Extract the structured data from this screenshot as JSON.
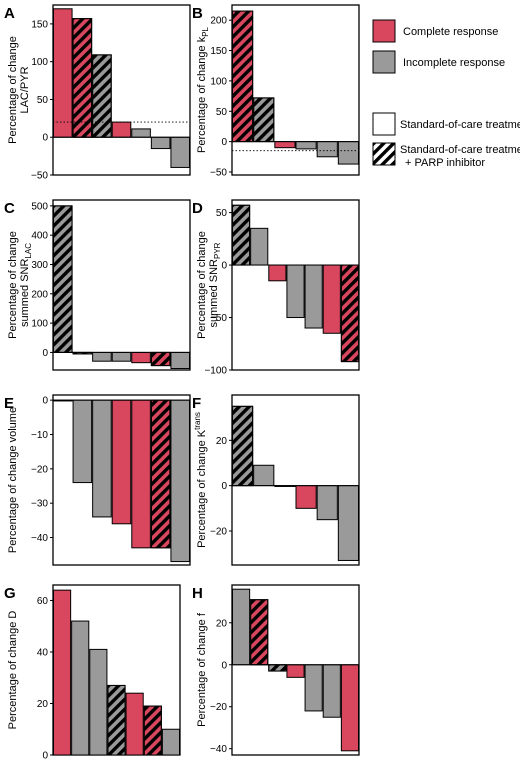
{
  "colors": {
    "complete": "#d9475f",
    "incomplete": "#9a9a9a",
    "stroke": "#000000"
  },
  "legend": {
    "complete_label": "Complete response",
    "incomplete_label": "Incomplete response",
    "soc_label": "Standard-of-care treatment",
    "parp_label_line1": "Standard-of-care treatment",
    "parp_label_line2": "+ PARP inhibitor"
  },
  "chart_data": [
    {
      "panel": "A",
      "type": "bar",
      "ylabel_lines": [
        "Percentage of change",
        "LAC/PYR"
      ],
      "ylim": [
        -50,
        175
      ],
      "ticks": [
        -50,
        0,
        50,
        100,
        150
      ],
      "reference_line": 20,
      "bars": [
        {
          "value": 170,
          "response": "complete",
          "parp": false
        },
        {
          "value": 157,
          "response": "complete",
          "parp": true
        },
        {
          "value": 109,
          "response": "incomplete",
          "parp": true
        },
        {
          "value": 20,
          "response": "complete",
          "parp": false
        },
        {
          "value": 11,
          "response": "incomplete",
          "parp": false
        },
        {
          "value": -15,
          "response": "incomplete",
          "parp": false
        },
        {
          "value": -40,
          "response": "incomplete",
          "parp": false
        }
      ]
    },
    {
      "panel": "B",
      "type": "bar",
      "ylabel_lines": [
        "Percentage of change k_PL"
      ],
      "ylim": [
        -55,
        225
      ],
      "ticks": [
        -50,
        0,
        50,
        100,
        150,
        200
      ],
      "reference_line": -15,
      "bars": [
        {
          "value": 215,
          "response": "complete",
          "parp": true
        },
        {
          "value": 72,
          "response": "incomplete",
          "parp": true
        },
        {
          "value": -10,
          "response": "complete",
          "parp": false
        },
        {
          "value": -12,
          "response": "incomplete",
          "parp": false
        },
        {
          "value": -25,
          "response": "incomplete",
          "parp": false
        },
        {
          "value": -37,
          "response": "incomplete",
          "parp": false
        }
      ]
    },
    {
      "panel": "C",
      "type": "bar",
      "ylabel_lines": [
        "Percentage of change",
        "summed SNR_LAC"
      ],
      "ylim": [
        -60,
        520
      ],
      "ticks": [
        0,
        100,
        200,
        300,
        400,
        500
      ],
      "reference_line": null,
      "bars": [
        {
          "value": 500,
          "response": "incomplete",
          "parp": true
        },
        {
          "value": -5,
          "response": "incomplete",
          "parp": true
        },
        {
          "value": -30,
          "response": "incomplete",
          "parp": false
        },
        {
          "value": -30,
          "response": "incomplete",
          "parp": false
        },
        {
          "value": -35,
          "response": "complete",
          "parp": false
        },
        {
          "value": -45,
          "response": "complete",
          "parp": true
        },
        {
          "value": -55,
          "response": "incomplete",
          "parp": false
        }
      ]
    },
    {
      "panel": "D",
      "type": "bar",
      "ylabel_lines": [
        "Percentage of change",
        "summed SNR_PYR"
      ],
      "ylim": [
        -100,
        62
      ],
      "ticks": [
        -100,
        -50,
        0,
        50
      ],
      "reference_line": null,
      "bars": [
        {
          "value": 57,
          "response": "incomplete",
          "parp": true
        },
        {
          "value": 35,
          "response": "incomplete",
          "parp": false
        },
        {
          "value": -15,
          "response": "complete",
          "parp": false
        },
        {
          "value": -50,
          "response": "incomplete",
          "parp": false
        },
        {
          "value": -60,
          "response": "incomplete",
          "parp": false
        },
        {
          "value": -65,
          "response": "complete",
          "parp": false
        },
        {
          "value": -92,
          "response": "complete",
          "parp": true
        }
      ]
    },
    {
      "panel": "E",
      "type": "bar",
      "ylabel_lines": [
        "Percentage of change volume"
      ],
      "ylim": [
        -48,
        1.5
      ],
      "ticks": [
        -40,
        -30,
        -20,
        -10,
        0
      ],
      "reference_line": null,
      "bars": [
        {
          "value": 0,
          "response": "incomplete",
          "parp": false
        },
        {
          "value": -24,
          "response": "incomplete",
          "parp": false
        },
        {
          "value": -34,
          "response": "incomplete",
          "parp": false
        },
        {
          "value": -36,
          "response": "complete",
          "parp": false
        },
        {
          "value": -43,
          "response": "complete",
          "parp": false
        },
        {
          "value": -43,
          "response": "complete",
          "parp": true
        },
        {
          "value": -47,
          "response": "incomplete",
          "parp": false
        }
      ]
    },
    {
      "panel": "F",
      "type": "bar",
      "ylabel_lines": [
        "Percentage of change K^trans"
      ],
      "ylim": [
        -35,
        40
      ],
      "ticks": [
        -20,
        0,
        20
      ],
      "reference_line": null,
      "bars": [
        {
          "value": 35,
          "response": "incomplete",
          "parp": true
        },
        {
          "value": 9,
          "response": "incomplete",
          "parp": false
        },
        {
          "value": 0,
          "response": "incomplete",
          "parp": false
        },
        {
          "value": -10,
          "response": "complete",
          "parp": false
        },
        {
          "value": -15,
          "response": "incomplete",
          "parp": false
        },
        {
          "value": -33,
          "response": "incomplete",
          "parp": false
        }
      ]
    },
    {
      "panel": "G",
      "type": "bar",
      "ylabel_lines": [
        "Percentage of change D"
      ],
      "ylim": [
        0,
        66
      ],
      "ticks": [
        0,
        20,
        40,
        60
      ],
      "reference_line": null,
      "bars": [
        {
          "value": 64,
          "response": "complete",
          "parp": false
        },
        {
          "value": 52,
          "response": "incomplete",
          "parp": false
        },
        {
          "value": 41,
          "response": "incomplete",
          "parp": false
        },
        {
          "value": 27,
          "response": "incomplete",
          "parp": true
        },
        {
          "value": 24,
          "response": "complete",
          "parp": false
        },
        {
          "value": 19,
          "response": "complete",
          "parp": true
        },
        {
          "value": 10,
          "response": "incomplete",
          "parp": false
        }
      ]
    },
    {
      "panel": "H",
      "type": "bar",
      "ylabel_lines": [
        "Percentage of change f"
      ],
      "ylim": [
        -43,
        38
      ],
      "ticks": [
        -40,
        -20,
        0,
        20
      ],
      "reference_line": null,
      "bars": [
        {
          "value": 36,
          "response": "incomplete",
          "parp": false
        },
        {
          "value": 31,
          "response": "complete",
          "parp": true
        },
        {
          "value": -3,
          "response": "incomplete",
          "parp": true
        },
        {
          "value": -6,
          "response": "complete",
          "parp": false
        },
        {
          "value": -22,
          "response": "incomplete",
          "parp": false
        },
        {
          "value": -25,
          "response": "incomplete",
          "parp": false
        },
        {
          "value": -41,
          "response": "complete",
          "parp": false
        }
      ]
    }
  ]
}
